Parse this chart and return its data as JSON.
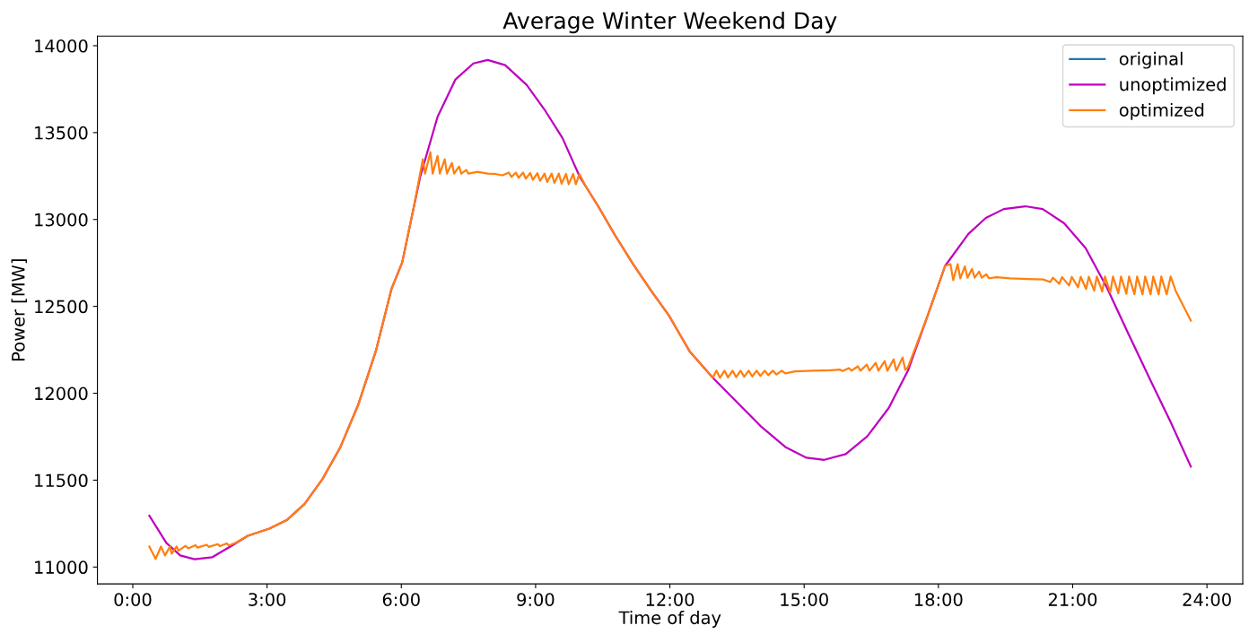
{
  "chart_data": {
    "type": "line",
    "title": "Average Winter Weekend Day",
    "xlabel": "Time of day",
    "ylabel": "Power [MW]",
    "xlim": [
      -0.79,
      24.8
    ],
    "ylim": [
      10903,
      14055
    ],
    "xticks": [
      {
        "value": 0,
        "label": "0:00"
      },
      {
        "value": 3,
        "label": "3:00"
      },
      {
        "value": 6,
        "label": "6:00"
      },
      {
        "value": 9,
        "label": "9:00"
      },
      {
        "value": 12,
        "label": "12:00"
      },
      {
        "value": 15,
        "label": "15:00"
      },
      {
        "value": 18,
        "label": "18:00"
      },
      {
        "value": 21,
        "label": "21:00"
      },
      {
        "value": 24,
        "label": "24:00"
      }
    ],
    "yticks": [
      11000,
      11500,
      12000,
      12500,
      13000,
      13500,
      14000
    ],
    "grid": false,
    "legend": "top right",
    "marker": "none",
    "line_style": "solid",
    "series": [
      {
        "name": "original",
        "color": "#1f77b4"
      },
      {
        "name": "unoptimized",
        "color": "#bf00bf",
        "x": [
          0.37,
          0.75,
          1.06,
          1.38,
          1.78,
          2.18,
          2.57,
          3.05,
          3.45,
          3.84,
          4.24,
          4.64,
          5.04,
          5.43,
          5.78,
          6.02,
          6.42,
          6.81,
          7.21,
          7.61,
          7.93,
          8.32,
          8.8,
          9.2,
          9.6,
          9.99,
          10.39,
          10.78,
          11.18,
          11.58,
          11.98,
          12.44,
          12.96,
          13.47,
          14.02,
          14.58,
          15.05,
          15.45,
          15.93,
          16.41,
          16.89,
          17.32,
          17.76,
          18.15,
          18.67,
          19.06,
          19.46,
          19.94,
          20.33,
          20.81,
          21.29,
          21.76,
          22.24,
          22.71,
          23.19,
          23.64
        ],
        "values": [
          11296,
          11139,
          11067,
          11045,
          11057,
          11118,
          11180,
          11221,
          11272,
          11364,
          11507,
          11691,
          11936,
          12242,
          12600,
          12753,
          13244,
          13591,
          13806,
          13898,
          13918,
          13888,
          13775,
          13632,
          13469,
          13244,
          13080,
          12907,
          12743,
          12590,
          12447,
          12242,
          12089,
          11956,
          11813,
          11691,
          11629,
          11617,
          11650,
          11752,
          11915,
          12130,
          12447,
          12733,
          12917,
          13009,
          13060,
          13076,
          13060,
          12978,
          12835,
          12610,
          12345,
          12089,
          11834,
          11578
        ]
      },
      {
        "name": "optimized",
        "color": "#ff7f0e",
        "x": [
          0.37,
          0.51,
          0.63,
          0.72,
          0.83,
          0.87,
          0.98,
          1.02,
          1.18,
          1.24,
          1.4,
          1.45,
          1.65,
          1.7,
          1.9,
          1.95,
          2.1,
          2.15,
          2.3,
          2.57,
          3.05,
          3.45,
          3.84,
          4.24,
          4.64,
          5.04,
          5.43,
          5.78,
          6.02,
          6.3,
          6.48,
          6.53,
          6.65,
          6.7,
          6.81,
          6.86,
          6.97,
          7.02,
          7.13,
          7.18,
          7.29,
          7.34,
          7.45,
          7.5,
          7.7,
          7.93,
          8.1,
          8.26,
          8.4,
          8.46,
          8.56,
          8.62,
          8.72,
          8.78,
          8.88,
          8.94,
          9.04,
          9.1,
          9.2,
          9.26,
          9.36,
          9.42,
          9.52,
          9.58,
          9.68,
          9.74,
          9.84,
          9.9,
          9.98,
          10.1,
          10.39,
          10.78,
          11.18,
          11.58,
          11.98,
          12.44,
          12.96,
          13.04,
          13.12,
          13.22,
          13.3,
          13.4,
          13.48,
          13.58,
          13.66,
          13.76,
          13.84,
          13.94,
          14.02,
          14.12,
          14.2,
          14.3,
          14.38,
          14.5,
          14.58,
          14.8,
          15.2,
          15.6,
          15.8,
          15.86,
          16.0,
          16.06,
          16.2,
          16.26,
          16.4,
          16.46,
          16.6,
          16.66,
          16.8,
          16.86,
          17.0,
          17.06,
          17.2,
          17.26,
          17.32,
          17.76,
          18.15,
          18.27,
          18.33,
          18.43,
          18.49,
          18.59,
          18.65,
          18.75,
          18.81,
          18.91,
          18.97,
          19.07,
          19.13,
          19.3,
          19.6,
          20.0,
          20.34,
          20.5,
          20.56,
          20.7,
          20.76,
          20.92,
          20.98,
          21.12,
          21.18,
          21.3,
          21.36,
          21.48,
          21.54,
          21.66,
          21.72,
          21.84,
          21.9,
          22.02,
          22.08,
          22.2,
          22.26,
          22.38,
          22.44,
          22.56,
          22.62,
          22.74,
          22.8,
          22.92,
          22.98,
          23.1,
          23.19,
          23.3,
          23.64
        ],
        "values": [
          11118,
          11047,
          11118,
          11067,
          11118,
          11077,
          11118,
          11094,
          11122,
          11108,
          11126,
          11112,
          11128,
          11116,
          11132,
          11120,
          11136,
          11124,
          11140,
          11180,
          11221,
          11272,
          11364,
          11507,
          11691,
          11936,
          12242,
          12600,
          12753,
          13100,
          13346,
          13264,
          13387,
          13264,
          13366,
          13264,
          13346,
          13264,
          13325,
          13264,
          13305,
          13264,
          13285,
          13264,
          13274,
          13264,
          13262,
          13254,
          13270,
          13245,
          13270,
          13240,
          13270,
          13235,
          13268,
          13228,
          13266,
          13222,
          13264,
          13216,
          13264,
          13210,
          13264,
          13206,
          13262,
          13203,
          13262,
          13203,
          13262,
          13200,
          13080,
          12907,
          12743,
          12590,
          12447,
          12242,
          12089,
          12130,
          12089,
          12130,
          12091,
          12130,
          12093,
          12130,
          12095,
          12130,
          12097,
          12130,
          12100,
          12130,
          12104,
          12130,
          12108,
          12130,
          12114,
          12126,
          12130,
          12132,
          12136,
          12128,
          12145,
          12130,
          12155,
          12130,
          12165,
          12130,
          12175,
          12130,
          12185,
          12130,
          12195,
          12130,
          12206,
          12135,
          12150,
          12447,
          12733,
          12743,
          12651,
          12743,
          12661,
          12730,
          12665,
          12715,
          12665,
          12700,
          12665,
          12685,
          12662,
          12668,
          12661,
          12657,
          12655,
          12640,
          12665,
          12630,
          12668,
          12620,
          12670,
          12610,
          12670,
          12600,
          12670,
          12590,
          12672,
          12585,
          12672,
          12580,
          12672,
          12575,
          12672,
          12572,
          12672,
          12570,
          12672,
          12569,
          12672,
          12569,
          12672,
          12569,
          12672,
          12569,
          12672,
          12590,
          12418
        ]
      }
    ]
  }
}
